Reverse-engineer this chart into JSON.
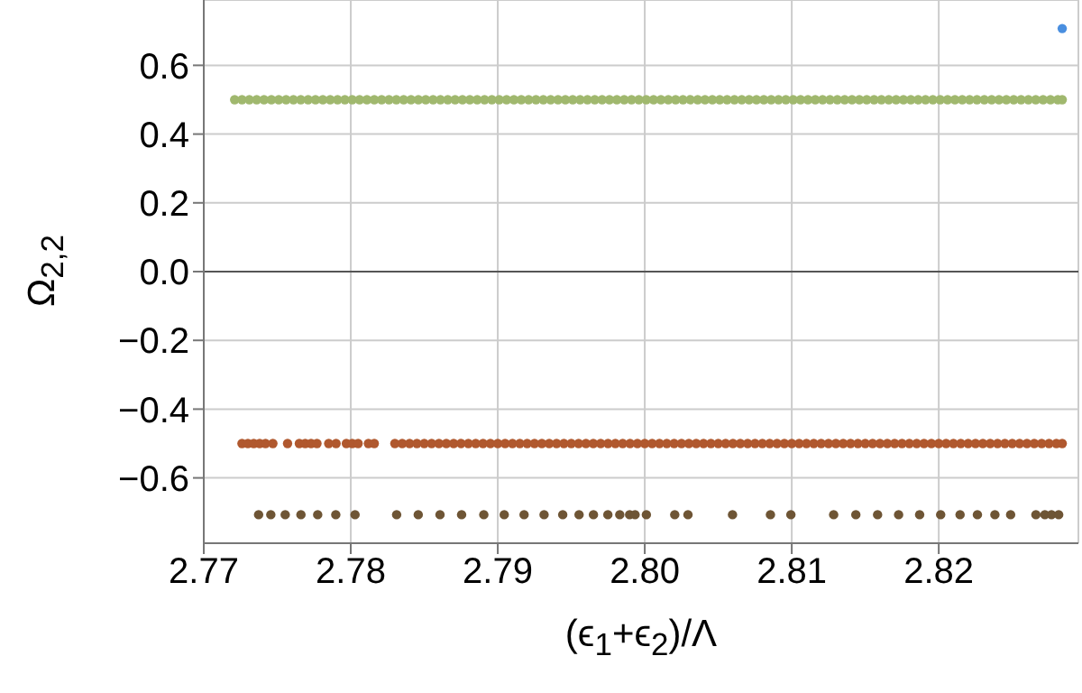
{
  "chart_data": {
    "type": "scatter",
    "xlabel": "(ϵ$_{1}$+ϵ$_{2}$)/Λ",
    "ylabel": "Ω$_{2,2}$",
    "xlim": [
      2.77,
      2.8295
    ],
    "ylim": [
      -0.79,
      0.79
    ],
    "xticks": [
      2.77,
      2.78,
      2.79,
      {
        "value": 2.8,
        "label": "2.80"
      },
      2.81,
      2.82
    ],
    "yticks": [
      {
        "value": -0.6,
        "label": "−0.6"
      },
      {
        "value": -0.4,
        "label": "−0.4"
      },
      {
        "value": -0.2,
        "label": "−0.2"
      },
      {
        "value": 0,
        "label": "0.0"
      },
      0.2,
      0.4,
      0.6
    ],
    "grid": true,
    "marker": "circle",
    "ref_lines": [
      {
        "axis": "y",
        "value": 0,
        "color": "#555555"
      }
    ],
    "series": [
      {
        "color": "#a0b86e",
        "x": [
          2.7721,
          2.7726,
          2.7731,
          2.7736,
          2.7741,
          2.7746,
          2.7751,
          2.7756,
          2.7761,
          2.7766,
          2.7771,
          2.7776,
          2.7781,
          2.7786,
          2.7791,
          2.7796,
          2.7801,
          2.7806,
          2.7811,
          2.7816,
          2.7821,
          2.7826,
          2.7831,
          2.7836,
          2.7841,
          2.7846,
          2.7851,
          2.7856,
          2.7861,
          2.7866,
          2.7871,
          2.7876,
          2.7881,
          2.7886,
          2.7891,
          2.7896,
          2.7901,
          2.7906,
          2.7911,
          2.7916,
          2.7921,
          2.7926,
          2.7931,
          2.7936,
          2.7941,
          2.7946,
          2.7951,
          2.7956,
          2.7961,
          2.7966,
          2.7971,
          2.7976,
          2.7981,
          2.7986,
          2.7991,
          2.7996,
          2.8001,
          2.8006,
          2.8011,
          2.8016,
          2.8021,
          2.8026,
          2.8031,
          2.8036,
          2.8041,
          2.8046,
          2.8051,
          2.8056,
          2.8061,
          2.8066,
          2.8071,
          2.8076,
          2.8081,
          2.8086,
          2.8091,
          2.8096,
          2.8101,
          2.8106,
          2.8111,
          2.8116,
          2.8121,
          2.8126,
          2.8131,
          2.8136,
          2.8141,
          2.8146,
          2.8151,
          2.8156,
          2.8161,
          2.8166,
          2.8171,
          2.8176,
          2.8181,
          2.8186,
          2.8191,
          2.8196,
          2.8201,
          2.8206,
          2.8211,
          2.8216,
          2.8221,
          2.8226,
          2.8231,
          2.8236,
          2.8241,
          2.8246,
          2.8251,
          2.8256,
          2.8261,
          2.8266,
          2.8271,
          2.8276,
          2.8281,
          2.8284
        ],
        "values": [
          0.5,
          0.5,
          0.5,
          0.5,
          0.5,
          0.5,
          0.5,
          0.5,
          0.5,
          0.5,
          0.5,
          0.5,
          0.5,
          0.5,
          0.5,
          0.5,
          0.5,
          0.5,
          0.5,
          0.5,
          0.5,
          0.5,
          0.5,
          0.5,
          0.5,
          0.5,
          0.5,
          0.5,
          0.5,
          0.5,
          0.5,
          0.5,
          0.5,
          0.5,
          0.5,
          0.5,
          0.5,
          0.5,
          0.5,
          0.5,
          0.5,
          0.5,
          0.5,
          0.5,
          0.5,
          0.5,
          0.5,
          0.5,
          0.5,
          0.5,
          0.5,
          0.5,
          0.5,
          0.5,
          0.5,
          0.5,
          0.5,
          0.5,
          0.5,
          0.5,
          0.5,
          0.5,
          0.5,
          0.5,
          0.5,
          0.5,
          0.5,
          0.5,
          0.5,
          0.5,
          0.5,
          0.5,
          0.5,
          0.5,
          0.5,
          0.5,
          0.5,
          0.5,
          0.5,
          0.5,
          0.5,
          0.5,
          0.5,
          0.5,
          0.5,
          0.5,
          0.5,
          0.5,
          0.5,
          0.5,
          0.5,
          0.5,
          0.5,
          0.5,
          0.5,
          0.5,
          0.5,
          0.5,
          0.5,
          0.5,
          0.5,
          0.5,
          0.5,
          0.5,
          0.5,
          0.5,
          0.5,
          0.5,
          0.5,
          0.5,
          0.5,
          0.5,
          0.5,
          0.5
        ]
      },
      {
        "color": "#b0582e",
        "x": [
          2.7726,
          2.773,
          2.7734,
          2.7738,
          2.7742,
          2.7747,
          2.7757,
          2.7765,
          2.7769,
          2.7773,
          2.7777,
          2.7785,
          2.779,
          2.7797,
          2.7801,
          2.7805,
          2.7812,
          2.7816,
          2.783,
          2.7835,
          2.784,
          2.7845,
          2.785,
          2.7855,
          2.786,
          2.7865,
          2.787,
          2.7875,
          2.788,
          2.7885,
          2.789,
          2.7895,
          2.79,
          2.7905,
          2.791,
          2.7915,
          2.792,
          2.7925,
          2.793,
          2.7935,
          2.794,
          2.7945,
          2.795,
          2.7955,
          2.796,
          2.7965,
          2.797,
          2.7975,
          2.798,
          2.7985,
          2.799,
          2.7995,
          2.8,
          2.8005,
          2.801,
          2.8015,
          2.802,
          2.8025,
          2.803,
          2.8035,
          2.804,
          2.8045,
          2.805,
          2.8055,
          2.806,
          2.8065,
          2.807,
          2.8075,
          2.808,
          2.8085,
          2.809,
          2.8095,
          2.81,
          2.8105,
          2.811,
          2.8115,
          2.812,
          2.8125,
          2.813,
          2.8135,
          2.814,
          2.8145,
          2.815,
          2.8155,
          2.816,
          2.8165,
          2.817,
          2.8175,
          2.818,
          2.8185,
          2.819,
          2.8195,
          2.82,
          2.8205,
          2.821,
          2.8215,
          2.822,
          2.8225,
          2.823,
          2.8235,
          2.824,
          2.8245,
          2.825,
          2.8255,
          2.826,
          2.8265,
          2.827,
          2.8275,
          2.828,
          2.8284
        ],
        "values": [
          -0.5,
          -0.5,
          -0.5,
          -0.5,
          -0.5,
          -0.5,
          -0.5,
          -0.5,
          -0.5,
          -0.5,
          -0.5,
          -0.5,
          -0.5,
          -0.5,
          -0.5,
          -0.5,
          -0.5,
          -0.5,
          -0.5,
          -0.5,
          -0.5,
          -0.5,
          -0.5,
          -0.5,
          -0.5,
          -0.5,
          -0.5,
          -0.5,
          -0.5,
          -0.5,
          -0.5,
          -0.5,
          -0.5,
          -0.5,
          -0.5,
          -0.5,
          -0.5,
          -0.5,
          -0.5,
          -0.5,
          -0.5,
          -0.5,
          -0.5,
          -0.5,
          -0.5,
          -0.5,
          -0.5,
          -0.5,
          -0.5,
          -0.5,
          -0.5,
          -0.5,
          -0.5,
          -0.5,
          -0.5,
          -0.5,
          -0.5,
          -0.5,
          -0.5,
          -0.5,
          -0.5,
          -0.5,
          -0.5,
          -0.5,
          -0.5,
          -0.5,
          -0.5,
          -0.5,
          -0.5,
          -0.5,
          -0.5,
          -0.5,
          -0.5,
          -0.5,
          -0.5,
          -0.5,
          -0.5,
          -0.5,
          -0.5,
          -0.5,
          -0.5,
          -0.5,
          -0.5,
          -0.5,
          -0.5,
          -0.5,
          -0.5,
          -0.5,
          -0.5,
          -0.5,
          -0.5,
          -0.5,
          -0.5,
          -0.5,
          -0.5,
          -0.5,
          -0.5,
          -0.5,
          -0.5,
          -0.5,
          -0.5,
          -0.5,
          -0.5,
          -0.5,
          -0.5,
          -0.5,
          -0.5,
          -0.5,
          -0.5,
          -0.5
        ]
      },
      {
        "color": "#6e5535",
        "x": [
          2.77373,
          2.77456,
          2.77554,
          2.77661,
          2.77775,
          2.77898,
          2.78029,
          2.78312,
          2.78459,
          2.78607,
          2.78754,
          2.78905,
          2.79044,
          2.79179,
          2.79315,
          2.79442,
          2.79553,
          2.79651,
          2.79749,
          2.7983,
          2.79897,
          2.79934,
          2.79962,
          2.79986,
          2.80011,
          2.80204,
          2.80294,
          2.80597,
          2.80855,
          2.80994,
          2.81285,
          2.81436,
          2.81584,
          2.81727,
          2.8187,
          2.82013,
          2.82145,
          2.82263,
          2.82382,
          2.82489,
          2.82661,
          2.82722,
          2.82767,
          2.82816
        ],
        "values": [
          -0.707,
          -0.707,
          -0.707,
          -0.707,
          -0.707,
          -0.707,
          -0.707,
          -0.707,
          -0.707,
          -0.707,
          -0.707,
          -0.707,
          -0.707,
          -0.707,
          -0.707,
          -0.707,
          -0.707,
          -0.707,
          -0.707,
          -0.707,
          -0.707,
          -0.707,
          null,
          null,
          -0.707,
          -0.707,
          -0.707,
          -0.707,
          -0.707,
          -0.707,
          -0.707,
          -0.707,
          -0.707,
          -0.707,
          -0.707,
          -0.707,
          -0.707,
          -0.707,
          -0.707,
          -0.707,
          -0.707,
          -0.707,
          -0.707,
          -0.707
        ]
      },
      {
        "color": "#4a8fe0",
        "x": [
          2.8284
        ],
        "values": [
          0.707
        ]
      }
    ]
  }
}
